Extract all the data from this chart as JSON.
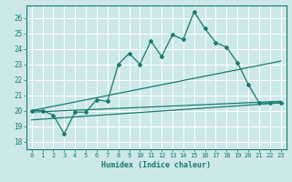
{
  "title": "",
  "xlabel": "Humidex (Indice chaleur)",
  "ylabel": "",
  "bg_color": "#cce8e8",
  "grid_color": "#ffffff",
  "line_color": "#1a7a6e",
  "xlim": [
    -0.5,
    23.5
  ],
  "ylim": [
    17.5,
    26.8
  ],
  "xticks": [
    0,
    1,
    2,
    3,
    4,
    5,
    6,
    7,
    8,
    9,
    10,
    11,
    12,
    13,
    14,
    15,
    16,
    17,
    18,
    19,
    20,
    21,
    22,
    23
  ],
  "yticks": [
    18,
    19,
    20,
    21,
    22,
    23,
    24,
    25,
    26
  ],
  "main_line_x": [
    0,
    1,
    2,
    3,
    4,
    5,
    6,
    7,
    8,
    9,
    10,
    11,
    12,
    13,
    14,
    15,
    16,
    17,
    18,
    19,
    20,
    21,
    22,
    23
  ],
  "main_line_y": [
    20.0,
    20.0,
    19.7,
    18.5,
    19.9,
    19.9,
    20.7,
    20.6,
    23.0,
    23.7,
    23.0,
    24.5,
    23.5,
    24.9,
    24.6,
    26.4,
    25.3,
    24.4,
    24.1,
    23.1,
    21.7,
    20.5,
    20.5,
    20.5
  ],
  "trend_line1_x": [
    0,
    23
  ],
  "trend_line1_y": [
    20.0,
    23.2
  ],
  "trend_line2_x": [
    0,
    23
  ],
  "trend_line2_y": [
    19.9,
    20.6
  ],
  "trend_line3_x": [
    0,
    23
  ],
  "trend_line3_y": [
    19.4,
    20.5
  ]
}
